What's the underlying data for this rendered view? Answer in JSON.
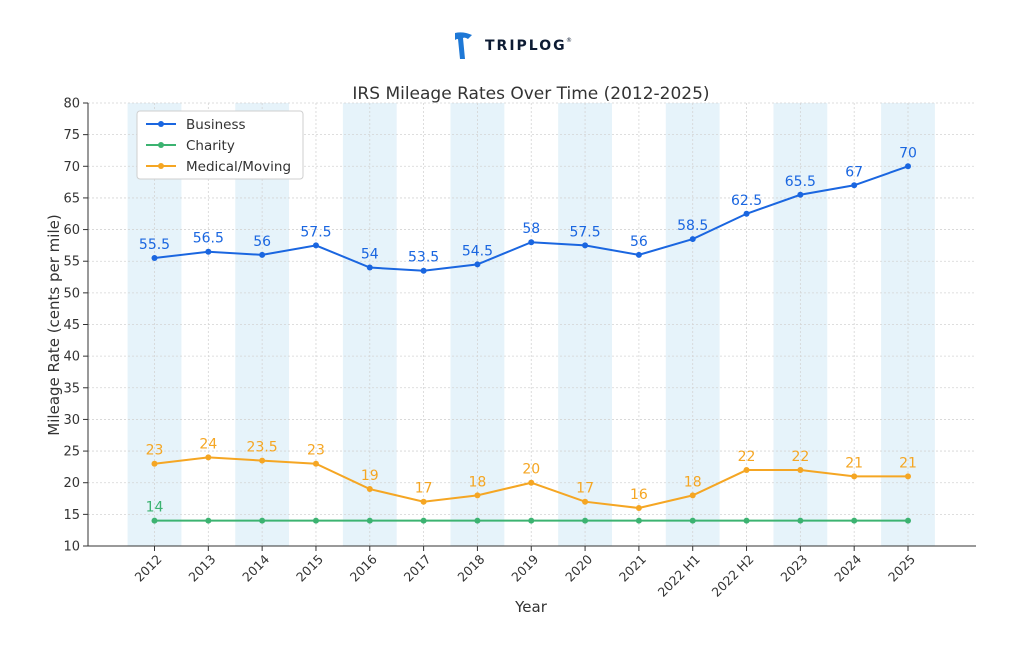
{
  "brand": {
    "name": "TRIPLOG",
    "mark": "®",
    "color": "#0d1b33",
    "accent": "#1e78d6"
  },
  "chart_data": {
    "type": "line",
    "title": "IRS Mileage Rates Over Time (2012-2025)",
    "xlabel": "Year",
    "ylabel": "Mileage Rate (cents per mile)",
    "ylim": [
      10,
      80
    ],
    "yticks": [
      10,
      15,
      20,
      25,
      30,
      35,
      40,
      45,
      50,
      55,
      60,
      65,
      70,
      75,
      80
    ],
    "grid": true,
    "legend_position": "top-left",
    "categories": [
      "2012",
      "2013",
      "2014",
      "2015",
      "2016",
      "2017",
      "2018",
      "2019",
      "2020",
      "2021",
      "2022 H1",
      "2022 H2",
      "2023",
      "2024",
      "2025"
    ],
    "shaded_categories": [
      "2012",
      "2014",
      "2016",
      "2018",
      "2020",
      "2022 H1",
      "2023",
      "2025"
    ],
    "shade_color": "#e6f3fa",
    "series": [
      {
        "name": "Business",
        "color": "#1a66e0",
        "values": [
          55.5,
          56.5,
          56,
          57.5,
          54,
          53.5,
          54.5,
          58,
          57.5,
          56,
          58.5,
          62.5,
          65.5,
          67,
          70
        ],
        "labels": [
          "55.5",
          "56.5",
          "56",
          "57.5",
          "54",
          "53.5",
          "54.5",
          "58",
          "57.5",
          "56",
          "58.5",
          "62.5",
          "65.5",
          "67",
          "70"
        ]
      },
      {
        "name": "Charity",
        "color": "#3cb371",
        "values": [
          14,
          14,
          14,
          14,
          14,
          14,
          14,
          14,
          14,
          14,
          14,
          14,
          14,
          14,
          14
        ],
        "labels": [
          "14",
          "",
          "",
          "",
          "",
          "",
          "",
          "",
          "",
          "",
          "",
          "",
          "",
          "",
          ""
        ]
      },
      {
        "name": "Medical/Moving",
        "color": "#f5a623",
        "values": [
          23,
          24,
          23.5,
          23,
          19,
          17,
          18,
          20,
          17,
          16,
          18,
          22,
          22,
          21,
          21
        ],
        "labels": [
          "23",
          "24",
          "23.5",
          "23",
          "19",
          "17",
          "18",
          "20",
          "17",
          "16",
          "18",
          "22",
          "22",
          "21",
          "21"
        ]
      }
    ]
  }
}
